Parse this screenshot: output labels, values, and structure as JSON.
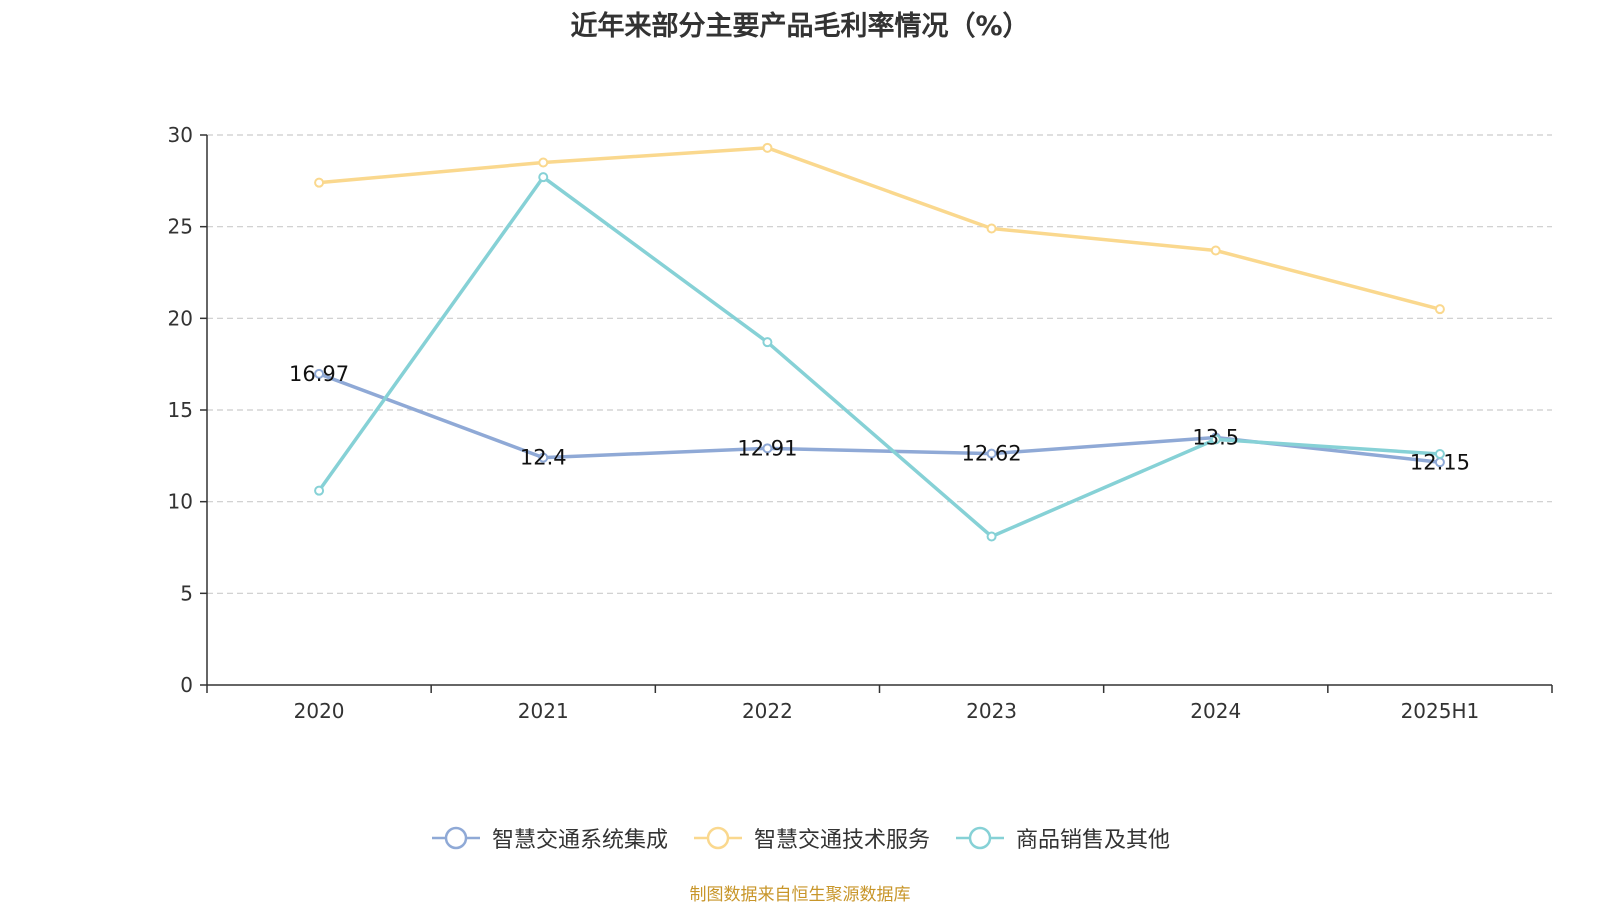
{
  "chart_data": {
    "type": "line",
    "title": "近年来部分主要产品毛利率情况（%）",
    "categories": [
      "2020",
      "2021",
      "2022",
      "2023",
      "2024",
      "2025H1"
    ],
    "ylim": [
      0,
      30
    ],
    "yticks": [
      0,
      5,
      10,
      15,
      20,
      25,
      30
    ],
    "grid": true,
    "legend_position": "bottom",
    "series": [
      {
        "name": "智慧交通系统集成",
        "color": "#8fa9d6",
        "values": [
          16.97,
          12.4,
          12.91,
          12.62,
          13.5,
          12.15
        ],
        "labels": [
          "16.97",
          "12.4",
          "12.91",
          "12.62",
          "13.5",
          "12.15"
        ]
      },
      {
        "name": "智慧交通技术服务",
        "color": "#fad88e",
        "values": [
          27.4,
          28.5,
          29.3,
          24.9,
          23.7,
          20.5
        ]
      },
      {
        "name": "商品销售及其他",
        "color": "#86d1d6",
        "values": [
          10.6,
          27.7,
          18.7,
          8.1,
          13.4,
          12.6
        ]
      }
    ]
  },
  "source_note": "制图数据来自恒生聚源数据库"
}
